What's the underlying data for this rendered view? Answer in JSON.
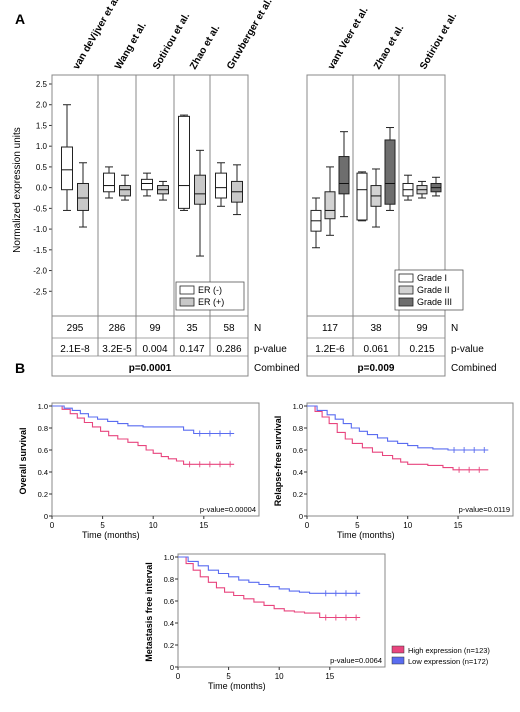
{
  "panel_labels": {
    "a": "A",
    "b": "B"
  },
  "panelA": {
    "ylabel": "Normalized expression units",
    "yticks": [
      "2.5",
      "2.0",
      "1.5",
      "1.0",
      "0.5",
      "0.0",
      "-0.5",
      "-1.0",
      "-1.5",
      "-2.0",
      "-2.5"
    ],
    "row_labels": {
      "n": "N",
      "p": "p-value",
      "combined": "Combined"
    }
  },
  "colors": {
    "er_neg": "#ffffff",
    "er_pos": "#c8c8c8",
    "grade1": "#ffffff",
    "grade2": "#d2d2d2",
    "grade3": "#6e6e6e",
    "high": "#e8457e",
    "low": "#5a6cf0"
  },
  "chart_data": [
    {
      "type": "boxplot",
      "id": "er",
      "ylim": [
        -3.0,
        2.5
      ],
      "datasets": [
        {
          "name": "van deVijver et al.",
          "N": "295",
          "p": "2.1E-8",
          "boxes": [
            {
              "group": "ER (-)",
              "min": -0.55,
              "q1": -0.05,
              "med": 0.43,
              "q3": 0.98,
              "max": 2.0
            },
            {
              "group": "ER (+)",
              "min": -0.95,
              "q1": -0.55,
              "med": -0.25,
              "q3": 0.1,
              "max": 0.6
            }
          ]
        },
        {
          "name": "Wang et al.",
          "N": "286",
          "p": "3.2E-5",
          "boxes": [
            {
              "group": "ER (-)",
              "min": -0.25,
              "q1": -0.1,
              "med": 0.05,
              "q3": 0.35,
              "max": 0.5
            },
            {
              "group": "ER (+)",
              "min": -0.3,
              "q1": -0.2,
              "med": -0.05,
              "q3": 0.05,
              "max": 0.3
            }
          ]
        },
        {
          "name": "Sotiriou et al.",
          "N": "99",
          "p": "0.004",
          "boxes": [
            {
              "group": "ER (-)",
              "min": -0.2,
              "q1": -0.05,
              "med": 0.1,
              "q3": 0.2,
              "max": 0.35
            },
            {
              "group": "ER (+)",
              "min": -0.3,
              "q1": -0.15,
              "med": -0.05,
              "q3": 0.05,
              "max": 0.15
            }
          ]
        },
        {
          "name": "Zhao et al.",
          "N": "35",
          "p": "0.147",
          "boxes": [
            {
              "group": "ER (-)",
              "min": -0.55,
              "q1": -0.5,
              "med": 0.05,
              "q3": 1.72,
              "max": 1.75
            },
            {
              "group": "ER (+)",
              "min": -1.65,
              "q1": -0.4,
              "med": -0.15,
              "q3": 0.3,
              "max": 0.9
            }
          ]
        },
        {
          "name": "Gruvberger et al.",
          "N": "58",
          "p": "0.286",
          "boxes": [
            {
              "group": "ER (-)",
              "min": -0.45,
              "q1": -0.25,
              "med": 0.0,
              "q3": 0.35,
              "max": 0.6
            },
            {
              "group": "ER (+)",
              "min": -0.65,
              "q1": -0.35,
              "med": -0.1,
              "q3": 0.15,
              "max": 0.55
            }
          ]
        }
      ],
      "combined_p": "p=0.0001",
      "legend": [
        "ER (-)",
        "ER (+)"
      ]
    },
    {
      "type": "boxplot",
      "id": "grade",
      "ylim": [
        -3.0,
        2.5
      ],
      "datasets": [
        {
          "name": "vant Veer et al.",
          "N": "117",
          "p": "1.2E-6",
          "boxes": [
            {
              "group": "Grade I",
              "min": -1.45,
              "q1": -1.05,
              "med": -0.8,
              "q3": -0.55,
              "max": -0.25
            },
            {
              "group": "Grade II",
              "min": -1.15,
              "q1": -0.75,
              "med": -0.55,
              "q3": -0.1,
              "max": 0.5
            },
            {
              "group": "Grade III",
              "min": -0.7,
              "q1": -0.15,
              "med": 0.1,
              "q3": 0.75,
              "max": 1.35
            }
          ]
        },
        {
          "name": "Zhao et al.",
          "N": "38",
          "p": "0.061",
          "boxes": [
            {
              "group": "Grade I",
              "min": -0.8,
              "q1": -0.78,
              "med": -0.05,
              "q3": 0.35,
              "max": 0.38
            },
            {
              "group": "Grade II",
              "min": -0.95,
              "q1": -0.45,
              "med": -0.2,
              "q3": 0.05,
              "max": 0.45
            },
            {
              "group": "Grade III",
              "min": -0.55,
              "q1": -0.4,
              "med": 0.1,
              "q3": 1.15,
              "max": 1.45
            }
          ]
        },
        {
          "name": "Sotiriou et al.",
          "N": "99",
          "p": "0.215",
          "boxes": [
            {
              "group": "Grade I",
              "min": -0.3,
              "q1": -0.2,
              "med": -0.05,
              "q3": 0.1,
              "max": 0.3
            },
            {
              "group": "Grade II",
              "min": -0.25,
              "q1": -0.15,
              "med": -0.05,
              "q3": 0.05,
              "max": 0.15
            },
            {
              "group": "Grade III",
              "min": -0.2,
              "q1": -0.1,
              "med": 0.0,
              "q3": 0.1,
              "max": 0.25
            }
          ]
        }
      ],
      "combined_p": "p=0.009",
      "legend": [
        "Grade I",
        "Grade II",
        "Grade III"
      ]
    },
    {
      "type": "line",
      "id": "os",
      "ylabel": "Overall survival",
      "xlabel": "Time (months)",
      "xlim": [
        0,
        18
      ],
      "ylim": [
        0,
        1.0
      ],
      "xticks": [
        0,
        5,
        10,
        15
      ],
      "yticks": [
        0,
        0.2,
        0.4,
        0.6,
        0.8,
        1.0
      ],
      "annotation": "p-value=0.00004",
      "series": [
        {
          "group": "high",
          "x": [
            0,
            1,
            1.8,
            2.5,
            3.2,
            4,
            4.8,
            5.6,
            6.5,
            7.5,
            8.5,
            9.3,
            10,
            10.8,
            11.5,
            12.3,
            13,
            18
          ],
          "y": [
            1,
            0.97,
            0.93,
            0.89,
            0.85,
            0.81,
            0.77,
            0.73,
            0.7,
            0.67,
            0.64,
            0.6,
            0.57,
            0.54,
            0.52,
            0.5,
            0.47,
            0.47
          ]
        },
        {
          "group": "low",
          "x": [
            0,
            1.2,
            2,
            2.8,
            3.6,
            4.5,
            5.5,
            6.5,
            7.5,
            9,
            12,
            13,
            14,
            18
          ],
          "y": [
            1,
            0.98,
            0.96,
            0.93,
            0.9,
            0.88,
            0.86,
            0.84,
            0.82,
            0.81,
            0.81,
            0.78,
            0.75,
            0.75
          ]
        }
      ]
    },
    {
      "type": "line",
      "id": "rfs",
      "ylabel": "Relapse-free survival",
      "xlabel": "Time (months)",
      "xlim": [
        0,
        18
      ],
      "ylim": [
        0,
        1.0
      ],
      "xticks": [
        0,
        5,
        10,
        15
      ],
      "yticks": [
        0,
        0.2,
        0.4,
        0.6,
        0.8,
        1.0
      ],
      "annotation": "p-value=0.0119",
      "series": [
        {
          "group": "high",
          "x": [
            0,
            0.8,
            1.5,
            2.2,
            3,
            3.8,
            4.5,
            5.5,
            6.5,
            7.5,
            8.5,
            9.3,
            10,
            11,
            12,
            13.5,
            14.5,
            18
          ],
          "y": [
            1,
            0.95,
            0.9,
            0.84,
            0.76,
            0.7,
            0.66,
            0.62,
            0.58,
            0.55,
            0.52,
            0.49,
            0.47,
            0.47,
            0.46,
            0.44,
            0.42,
            0.42
          ]
        },
        {
          "group": "low",
          "x": [
            0,
            1,
            2,
            2.8,
            3.6,
            4.4,
            5.2,
            6,
            7,
            8,
            9,
            10,
            11,
            12.5,
            14,
            18
          ],
          "y": [
            1,
            0.96,
            0.92,
            0.88,
            0.84,
            0.8,
            0.77,
            0.74,
            0.71,
            0.68,
            0.66,
            0.64,
            0.62,
            0.61,
            0.6,
            0.6
          ]
        }
      ]
    },
    {
      "type": "line",
      "id": "mfi",
      "ylabel": "Metastasis free interval",
      "xlabel": "Time (months)",
      "xlim": [
        0,
        18
      ],
      "ylim": [
        0,
        1.0
      ],
      "xticks": [
        0,
        5,
        10,
        15
      ],
      "yticks": [
        0,
        0.2,
        0.4,
        0.6,
        0.8,
        1.0
      ],
      "annotation": "p-value=0.0064",
      "series": [
        {
          "group": "high",
          "x": [
            0,
            0.8,
            1.5,
            2.2,
            3,
            3.8,
            4.6,
            5.5,
            6.5,
            7.5,
            8.5,
            9.5,
            10.5,
            11.5,
            12.5,
            14,
            18
          ],
          "y": [
            1,
            0.94,
            0.88,
            0.82,
            0.77,
            0.72,
            0.68,
            0.65,
            0.62,
            0.59,
            0.56,
            0.53,
            0.51,
            0.5,
            0.49,
            0.45,
            0.45
          ]
        },
        {
          "group": "low",
          "x": [
            0,
            1,
            2,
            3,
            4,
            5,
            6,
            7,
            8,
            9,
            10,
            11,
            12,
            13,
            14,
            18
          ],
          "y": [
            1,
            0.96,
            0.92,
            0.88,
            0.85,
            0.82,
            0.79,
            0.77,
            0.75,
            0.73,
            0.71,
            0.69,
            0.68,
            0.67,
            0.67,
            0.67
          ]
        }
      ]
    }
  ],
  "km_legend": {
    "high": "High expression (n=123)",
    "low": "Low expression (n=172)"
  }
}
